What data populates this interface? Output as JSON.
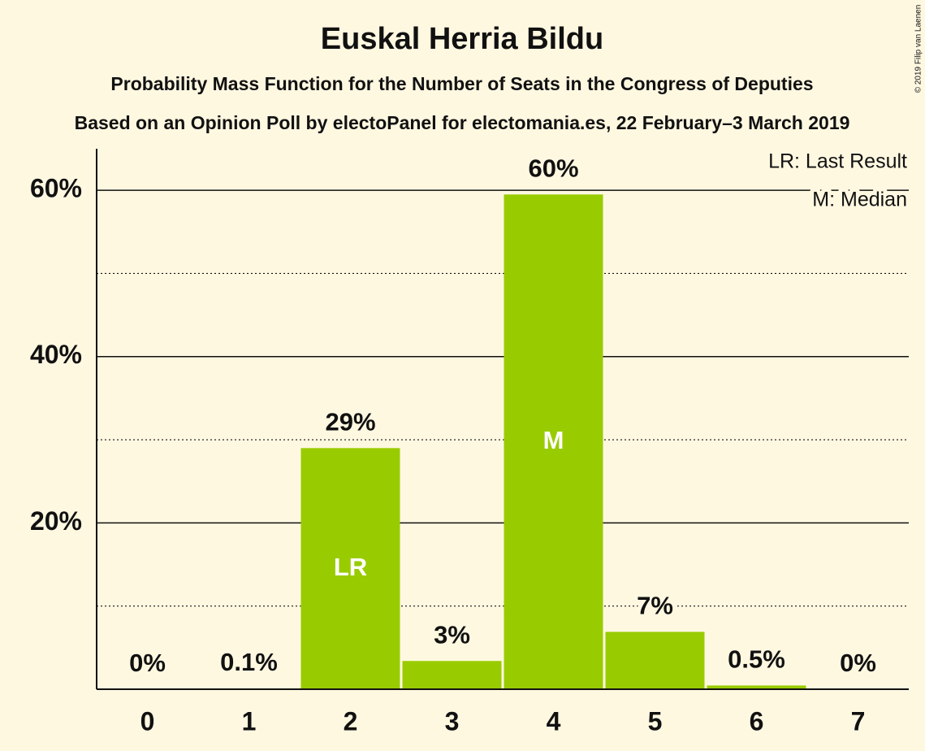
{
  "chart_data": {
    "type": "bar",
    "title": "Euskal Herria Bildu",
    "subtitle": "Probability Mass Function for the Number of Seats in the Congress of Deputies",
    "subtitle2": "Based on an Opinion Poll by electoPanel for electomania.es, 22 February–3 March 2019",
    "copyright": "© 2019 Filip van Laenen",
    "categories": [
      "0",
      "1",
      "2",
      "3",
      "4",
      "5",
      "6",
      "7"
    ],
    "values": [
      0,
      0.1,
      29,
      3.4,
      59.5,
      6.9,
      0.45,
      0
    ],
    "value_labels": [
      "0%",
      "0.1%",
      "29%",
      "3%",
      "60%",
      "7%",
      "0.5%",
      "0%"
    ],
    "bar_labels": [
      null,
      null,
      "LR",
      null,
      "M",
      null,
      null,
      null
    ],
    "legend": [
      "LR: Last Result",
      "M: Median"
    ],
    "color": "#99cc00",
    "ylim": [
      0,
      65
    ],
    "yticks": [
      {
        "value": 20,
        "label": "20%"
      },
      {
        "value": 40,
        "label": "40%"
      },
      {
        "value": 60,
        "label": "60%"
      }
    ],
    "minor_yticks": [
      10,
      30,
      50
    ],
    "grid": true
  }
}
